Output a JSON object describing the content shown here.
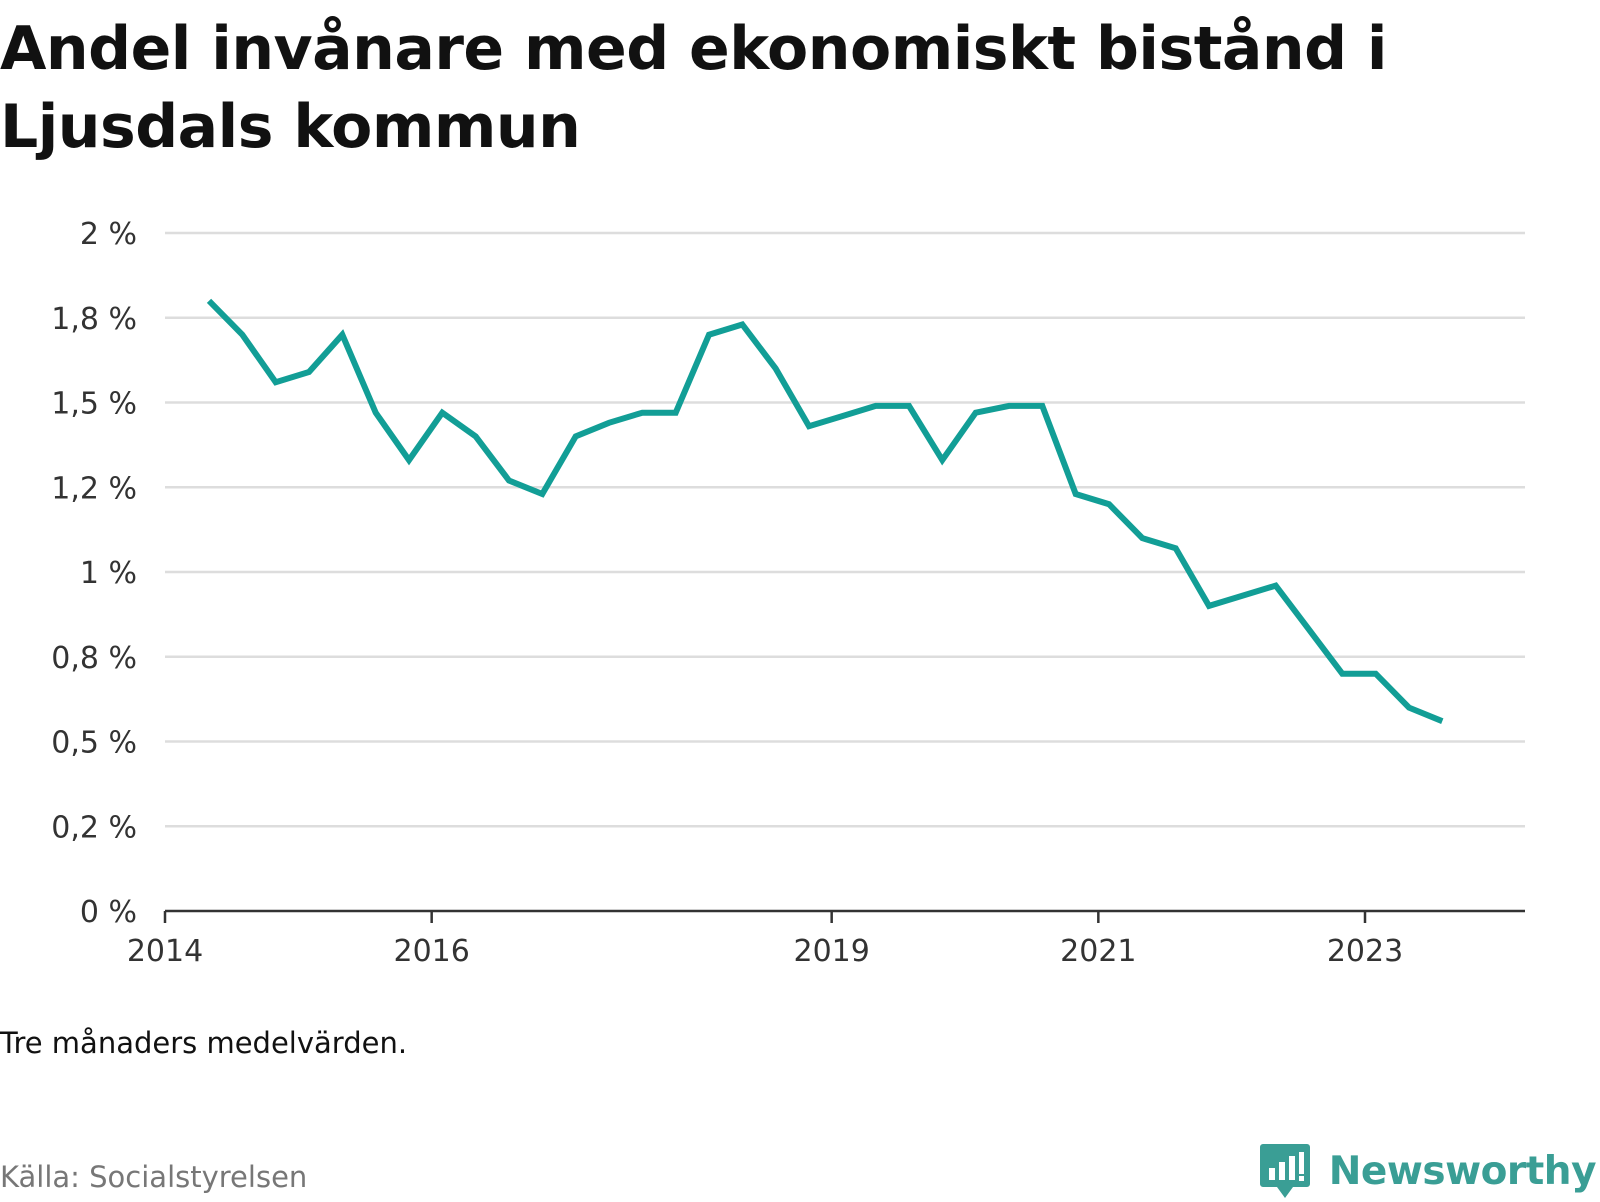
{
  "title": "Andel invånare med ekonomiskt bistånd i Ljusdals kommun",
  "note": "Tre månaders medelvärden.",
  "source": "Källa: Socialstyrelsen",
  "brand": {
    "name": "Newsworthy",
    "logo_icon": "newsworthy-logo-icon"
  },
  "colors": {
    "line": "#129e96",
    "grid": "#dddddd",
    "axis": "#333333",
    "brand": "#3a9e95"
  },
  "chart_data": {
    "type": "line",
    "title": "Andel invånare med ekonomiskt bistånd i Ljusdals kommun",
    "xlabel": "",
    "ylabel": "",
    "ylim": [
      0,
      2
    ],
    "y_ticks": [
      0,
      0.25,
      0.5,
      0.75,
      1,
      1.25,
      1.5,
      1.75,
      2
    ],
    "y_tick_labels": [
      "0 %",
      "0,2 %",
      "0,5 %",
      "0,8 %",
      "1 %",
      "1,2 %",
      "1,5 %",
      "1,8 %",
      "2 %"
    ],
    "x_ticks": [
      2014,
      2016,
      2019,
      2021,
      2023
    ],
    "x_tick_labels": [
      "2014",
      "2016",
      "2019",
      "2021",
      "2023"
    ],
    "xlim": [
      2014,
      2024.2
    ],
    "grid": true,
    "series": [
      {
        "x": [
          2014.33,
          2014.58,
          2014.83,
          2015.08,
          2015.33,
          2015.58,
          2015.83,
          2016.08,
          2016.33,
          2016.58,
          2016.83,
          2017.08,
          2017.33,
          2017.58,
          2017.83,
          2018.08,
          2018.33,
          2018.58,
          2018.83,
          2019.08,
          2019.33,
          2019.58,
          2019.83,
          2020.08,
          2020.33,
          2020.58,
          2020.83,
          2021.08,
          2021.33,
          2021.58,
          2021.83,
          2022.08,
          2022.33,
          2022.58,
          2022.83,
          2023.08,
          2023.33,
          2023.58
        ],
        "values": [
          1.8,
          1.7,
          1.56,
          1.59,
          1.7,
          1.47,
          1.33,
          1.47,
          1.4,
          1.27,
          1.23,
          1.4,
          1.44,
          1.47,
          1.47,
          1.7,
          1.73,
          1.6,
          1.43,
          1.46,
          1.49,
          1.49,
          1.33,
          1.47,
          1.49,
          1.49,
          1.23,
          1.2,
          1.1,
          1.07,
          0.9,
          0.93,
          0.96,
          0.83,
          0.7,
          0.7,
          0.6,
          0.56
        ]
      }
    ]
  }
}
